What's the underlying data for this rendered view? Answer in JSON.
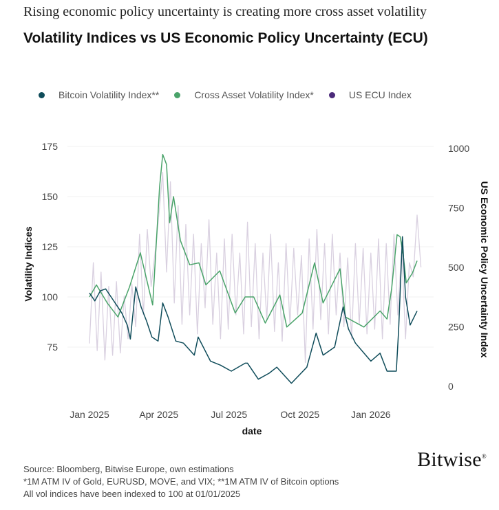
{
  "header": {
    "subtitle": "Rising economic policy uncertainty is creating more cross asset volatility",
    "title": "Volatility Indices vs US Economic Policy Uncertainty (ECU)"
  },
  "footer": {
    "lines": [
      "Source: Bloomberg, Bitwise Europe, own estimations",
      "*1M ATM IV of Gold, EURUSD, MOVE, and VIX; **1M ATM IV of Bitcoin options",
      "All vol indices have been indexed to 100 at 01/01/2025"
    ],
    "logo": "Bitwise"
  },
  "chart_data": {
    "type": "line",
    "xlabel": "date",
    "ylabel": "Volatility Indices",
    "y2label": "US Economic Policy Uncertainty Index",
    "xticks": [
      "Jan 2025",
      "Apr 2025",
      "Jul 2025",
      "Oct 2025",
      "Jan 2026"
    ],
    "xtick_dates": [
      "2025-01-01",
      "2025-04-01",
      "2025-07-01",
      "2025-10-01",
      "2026-01-01"
    ],
    "yticks": [
      75,
      100,
      125,
      150,
      175
    ],
    "y2ticks": [
      0,
      250,
      500,
      750,
      1000
    ],
    "ylim": [
      50,
      175
    ],
    "y2lim": [
      0,
      1000
    ],
    "grid": true,
    "legend_position": "top",
    "series": [
      {
        "name": "Bitcoin Volatility Index**",
        "axis": "left",
        "color": "#0f4c5a",
        "points": [
          [
            "2025-01-01",
            102
          ],
          [
            "2025-01-08",
            98
          ],
          [
            "2025-01-15",
            103
          ],
          [
            "2025-01-22",
            104
          ],
          [
            "2025-01-29",
            100
          ],
          [
            "2025-02-05",
            96
          ],
          [
            "2025-02-12",
            92
          ],
          [
            "2025-02-19",
            86
          ],
          [
            "2025-02-23",
            79
          ],
          [
            "2025-03-02",
            105
          ],
          [
            "2025-03-09",
            95
          ],
          [
            "2025-03-16",
            88
          ],
          [
            "2025-03-23",
            80
          ],
          [
            "2025-03-31",
            78
          ],
          [
            "2025-04-06",
            97
          ],
          [
            "2025-04-13",
            90
          ],
          [
            "2025-04-23",
            78
          ],
          [
            "2025-05-03",
            77
          ],
          [
            "2025-05-17",
            71
          ],
          [
            "2025-05-22",
            80
          ],
          [
            "2025-06-07",
            68
          ],
          [
            "2025-06-20",
            66
          ],
          [
            "2025-07-04",
            63
          ],
          [
            "2025-07-22",
            67
          ],
          [
            "2025-07-25",
            67
          ],
          [
            "2025-08-08",
            59
          ],
          [
            "2025-08-22",
            62
          ],
          [
            "2025-09-01",
            65
          ],
          [
            "2025-09-20",
            57
          ],
          [
            "2025-10-10",
            65
          ],
          [
            "2025-10-22",
            82
          ],
          [
            "2025-10-31",
            71
          ],
          [
            "2025-11-15",
            75
          ],
          [
            "2025-11-26",
            95
          ],
          [
            "2025-12-03",
            84
          ],
          [
            "2025-12-12",
            77
          ],
          [
            "2026-01-01",
            68
          ],
          [
            "2026-01-13",
            72
          ],
          [
            "2026-01-22",
            63
          ],
          [
            "2026-02-03",
            63
          ],
          [
            "2026-02-06",
            83
          ],
          [
            "2026-02-11",
            130
          ],
          [
            "2026-02-15",
            100
          ],
          [
            "2026-02-21",
            86
          ],
          [
            "2026-03-02",
            93
          ]
        ]
      },
      {
        "name": "Cross Asset Volatility Index*",
        "axis": "left",
        "color": "#4aa36a",
        "points": [
          [
            "2025-01-01",
            100
          ],
          [
            "2025-01-10",
            106
          ],
          [
            "2025-01-24",
            97
          ],
          [
            "2025-02-07",
            90
          ],
          [
            "2025-02-22",
            105
          ],
          [
            "2025-03-08",
            122
          ],
          [
            "2025-03-24",
            96
          ],
          [
            "2025-04-02",
            155
          ],
          [
            "2025-04-06",
            171
          ],
          [
            "2025-04-11",
            166
          ],
          [
            "2025-04-15",
            137
          ],
          [
            "2025-04-20",
            150
          ],
          [
            "2025-04-29",
            128
          ],
          [
            "2025-05-11",
            116
          ],
          [
            "2025-05-23",
            117
          ],
          [
            "2025-06-01",
            106
          ],
          [
            "2025-06-19",
            113
          ],
          [
            "2025-07-09",
            92
          ],
          [
            "2025-07-22",
            100
          ],
          [
            "2025-08-02",
            100
          ],
          [
            "2025-08-17",
            87
          ],
          [
            "2025-09-05",
            101
          ],
          [
            "2025-09-14",
            85
          ],
          [
            "2025-10-04",
            92
          ],
          [
            "2025-10-20",
            117
          ],
          [
            "2025-10-31",
            97
          ],
          [
            "2025-11-22",
            114
          ],
          [
            "2025-11-29",
            90
          ],
          [
            "2025-12-23",
            85
          ],
          [
            "2026-01-13",
            93
          ],
          [
            "2026-01-22",
            89
          ],
          [
            "2026-01-28",
            104
          ],
          [
            "2026-02-04",
            131
          ],
          [
            "2026-02-08",
            130
          ],
          [
            "2026-02-12",
            121
          ],
          [
            "2026-02-16",
            107
          ],
          [
            "2026-02-24",
            112
          ],
          [
            "2026-03-02",
            118
          ]
        ]
      },
      {
        "name": "US ECU Index",
        "axis": "right",
        "color": "#d9d0e0",
        "legend_color": "#4b2a7a",
        "points": [
          [
            "2025-01-01",
            180
          ],
          [
            "2025-01-06",
            520
          ],
          [
            "2025-01-11",
            150
          ],
          [
            "2025-01-16",
            480
          ],
          [
            "2025-01-21",
            110
          ],
          [
            "2025-01-26",
            420
          ],
          [
            "2025-01-31",
            130
          ],
          [
            "2025-02-05",
            440
          ],
          [
            "2025-02-10",
            140
          ],
          [
            "2025-02-15",
            380
          ],
          [
            "2025-02-20",
            200
          ],
          [
            "2025-02-25",
            430
          ],
          [
            "2025-03-02",
            250
          ],
          [
            "2025-03-07",
            640
          ],
          [
            "2025-03-12",
            300
          ],
          [
            "2025-03-17",
            660
          ],
          [
            "2025-03-22",
            420
          ],
          [
            "2025-03-27",
            560
          ],
          [
            "2025-04-01",
            720
          ],
          [
            "2025-04-06",
            900
          ],
          [
            "2025-04-11",
            480
          ],
          [
            "2025-04-16",
            860
          ],
          [
            "2025-04-21",
            350
          ],
          [
            "2025-04-26",
            760
          ],
          [
            "2025-05-01",
            260
          ],
          [
            "2025-05-06",
            680
          ],
          [
            "2025-05-11",
            300
          ],
          [
            "2025-05-16",
            640
          ],
          [
            "2025-05-21",
            220
          ],
          [
            "2025-05-26",
            600
          ],
          [
            "2025-05-31",
            330
          ],
          [
            "2025-06-05",
            700
          ],
          [
            "2025-06-10",
            260
          ],
          [
            "2025-06-15",
            560
          ],
          [
            "2025-06-20",
            200
          ],
          [
            "2025-06-25",
            620
          ],
          [
            "2025-06-30",
            240
          ],
          [
            "2025-07-05",
            640
          ],
          [
            "2025-07-10",
            300
          ],
          [
            "2025-07-15",
            560
          ],
          [
            "2025-07-20",
            220
          ],
          [
            "2025-07-25",
            690
          ],
          [
            "2025-07-30",
            250
          ],
          [
            "2025-08-04",
            600
          ],
          [
            "2025-08-09",
            200
          ],
          [
            "2025-08-14",
            560
          ],
          [
            "2025-08-19",
            280
          ],
          [
            "2025-08-24",
            640
          ],
          [
            "2025-08-29",
            230
          ],
          [
            "2025-09-03",
            520
          ],
          [
            "2025-09-08",
            190
          ],
          [
            "2025-09-13",
            600
          ],
          [
            "2025-09-18",
            260
          ],
          [
            "2025-09-23",
            580
          ],
          [
            "2025-09-28",
            300
          ],
          [
            "2025-10-03",
            550
          ],
          [
            "2025-10-08",
            100
          ],
          [
            "2025-10-13",
            620
          ],
          [
            "2025-10-18",
            240
          ],
          [
            "2025-10-23",
            660
          ],
          [
            "2025-10-28",
            280
          ],
          [
            "2025-11-02",
            600
          ],
          [
            "2025-11-07",
            220
          ],
          [
            "2025-11-12",
            640
          ],
          [
            "2025-11-17",
            300
          ],
          [
            "2025-11-22",
            560
          ],
          [
            "2025-11-27",
            250
          ],
          [
            "2025-12-02",
            540
          ],
          [
            "2025-12-07",
            200
          ],
          [
            "2025-12-12",
            600
          ],
          [
            "2025-12-17",
            260
          ],
          [
            "2025-12-22",
            580
          ],
          [
            "2025-12-27",
            220
          ],
          [
            "2026-01-01",
            560
          ],
          [
            "2026-01-06",
            240
          ],
          [
            "2026-01-11",
            620
          ],
          [
            "2026-01-16",
            200
          ],
          [
            "2026-01-21",
            600
          ],
          [
            "2026-01-26",
            260
          ],
          [
            "2026-01-31",
            640
          ],
          [
            "2026-02-05",
            300
          ],
          [
            "2026-02-10",
            580
          ],
          [
            "2026-02-15",
            200
          ],
          [
            "2026-02-20",
            520
          ],
          [
            "2026-02-25",
            460
          ],
          [
            "2026-03-02",
            720
          ],
          [
            "2026-03-07",
            500
          ]
        ]
      }
    ]
  }
}
